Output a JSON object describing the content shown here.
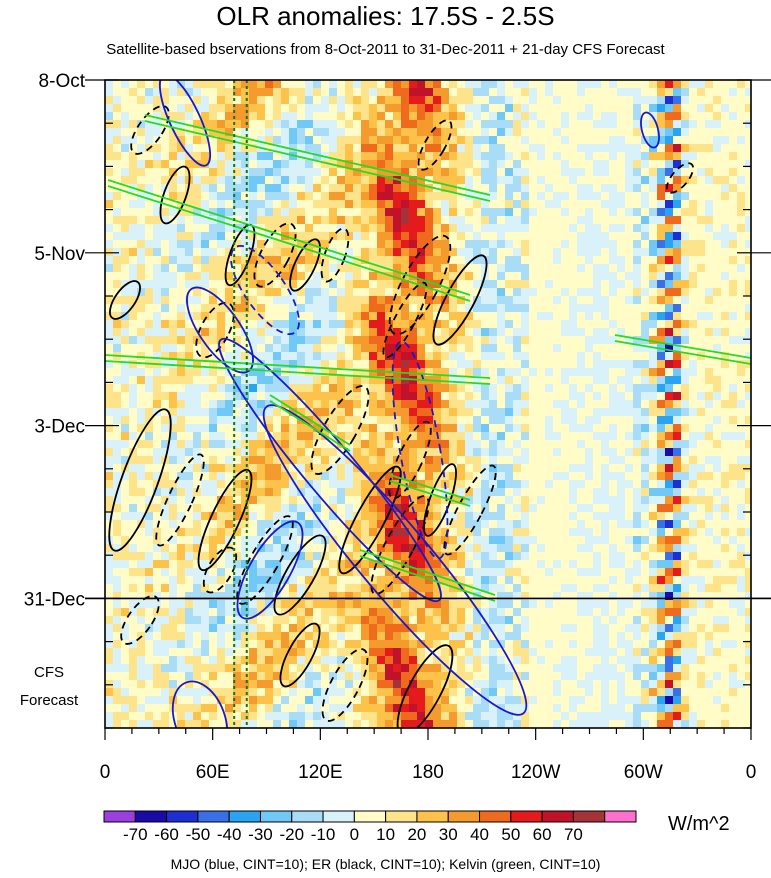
{
  "chart_data": {
    "type": "heatmap",
    "title": "OLR anomalies: 17.5S - 2.5S",
    "subtitle": "Satellite-based bservations from 8-Oct-2011 to 31-Dec-2011 + 21-day CFS Forecast",
    "y_tick_labels": [
      "8-Oct",
      "5-Nov",
      "3-Dec",
      "31-Dec"
    ],
    "y_tick_days": [
      0,
      28,
      56,
      84
    ],
    "y_range_days": [
      0,
      105
    ],
    "forecast_start_day": 84,
    "forecast_label_line1": "CFS",
    "forecast_label_line2": "Forecast",
    "x_tick_labels": [
      "0",
      "60E",
      "120E",
      "180",
      "120W",
      "60W",
      "0"
    ],
    "x_tick_lon": [
      0,
      60,
      120,
      180,
      240,
      300,
      360
    ],
    "x_range_lon": [
      0,
      360
    ],
    "reference_lon_lines": [
      72,
      79
    ],
    "colorbar": {
      "labels": [
        "-70",
        "-60",
        "-50",
        "-40",
        "-30",
        "-20",
        "-10",
        "0",
        "10",
        "20",
        "30",
        "40",
        "50",
        "60",
        "70"
      ],
      "colors": [
        "#9b3fe0",
        "#1a0aa8",
        "#1d2fd4",
        "#3b6fe8",
        "#2aa4f0",
        "#6fc8f5",
        "#a9dcf7",
        "#d9f2fa",
        "#fffcc8",
        "#fde38a",
        "#fdc24a",
        "#f59a2c",
        "#ef6a1c",
        "#e41a1c",
        "#c0122b",
        "#a8323a",
        "#ff6fce"
      ],
      "units": "W/m^2"
    },
    "legend_caption": "MJO (blue, CINT=10); ER (black, CINT=10); Kelvin (green, CINT=10)",
    "contour_colors": {
      "mjo": "#1a1acc",
      "er": "#000000",
      "kelvin": "#22dd22",
      "reference": "#117711"
    }
  }
}
